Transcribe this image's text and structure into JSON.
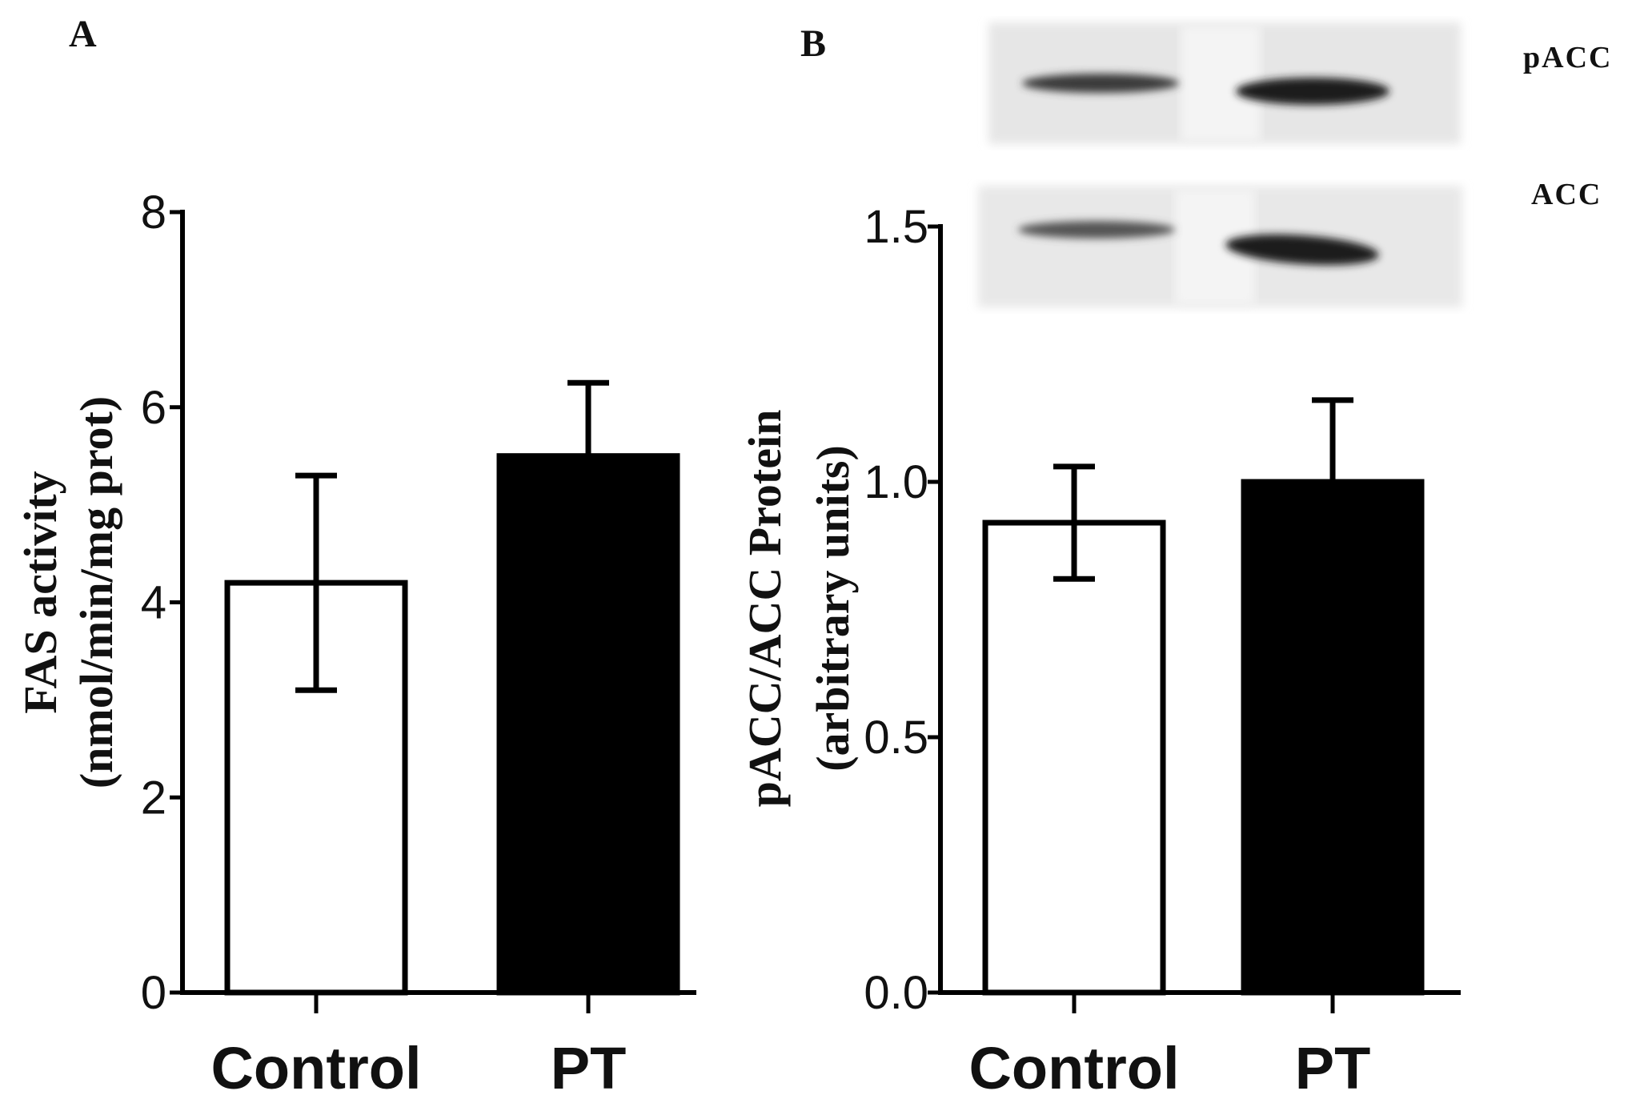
{
  "panels": {
    "a": "A",
    "b": "B"
  },
  "blot": {
    "top_label": "pACC",
    "bottom_label": "ACC"
  },
  "chart_data": [
    {
      "type": "bar",
      "categories": [
        "Control",
        "PT"
      ],
      "values": [
        4.2,
        5.5
      ],
      "errors": [
        1.1,
        0.75
      ],
      "ylabel_line1": "FAS activity",
      "ylabel_line2": "(nmol/min/mg prot)",
      "ylim": [
        0,
        8
      ],
      "yticks": [
        0,
        2,
        4,
        6,
        8
      ],
      "ytick_labels": [
        "0",
        "2",
        "4",
        "6",
        "8"
      ],
      "bar_fills": [
        "#ffffff",
        "#000000"
      ],
      "grid": false
    },
    {
      "type": "bar",
      "categories": [
        "Control",
        "PT"
      ],
      "values": [
        0.92,
        1.0
      ],
      "errors": [
        0.11,
        0.16
      ],
      "ylabel_line1": "pACC/ACC Protein",
      "ylabel_line2": "(arbitrary units)",
      "ylim": [
        0,
        1.5
      ],
      "yticks": [
        0,
        0.5,
        1.0,
        1.5
      ],
      "ytick_labels": [
        "0.0",
        "0.5",
        "1.0",
        "1.5"
      ],
      "bar_fills": [
        "#ffffff",
        "#000000"
      ],
      "grid": false
    }
  ]
}
